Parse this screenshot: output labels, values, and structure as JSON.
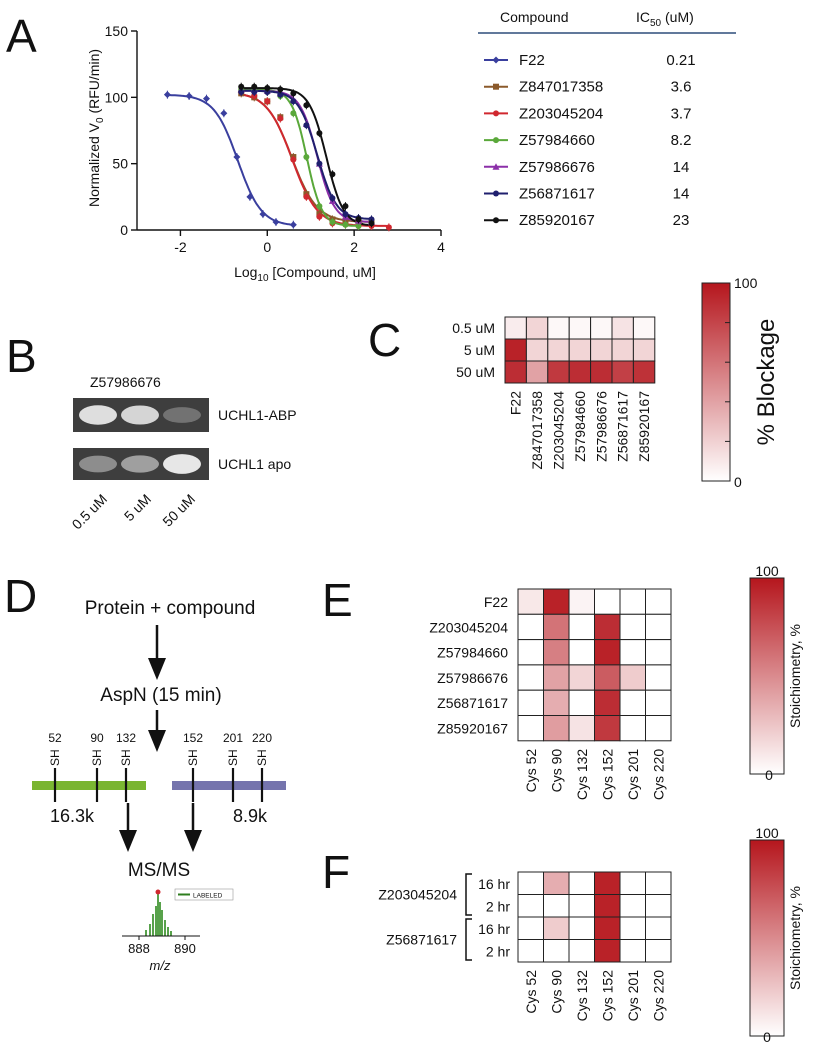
{
  "panels": {
    "A": "A",
    "B": "B",
    "C": "C",
    "D": "D",
    "E": "E",
    "F": "F"
  },
  "chart_data": [
    {
      "panel": "A",
      "type": "line",
      "title": "",
      "xlabel_main": "Log",
      "xlabel_sub": "10",
      "xlabel_rest": " [Compound, uM]",
      "ylabel_main": "Normalized V",
      "ylabel_sub": "0",
      "ylabel_rest": " (RFU/min)",
      "xlim": [
        -3,
        4
      ],
      "ylim": [
        0,
        150
      ],
      "xticks": [
        "-2",
        "0",
        "2",
        "4"
      ],
      "yticks": [
        "0",
        "50",
        "100",
        "150"
      ],
      "legend_header": {
        "compound": "Compound",
        "ic50_main": "IC",
        "ic50_sub": "50",
        "ic50_rest": " (uM)"
      },
      "series": [
        {
          "name": "F22",
          "ic50": "0.21",
          "color": "#3a3f9e",
          "marker": "diamond",
          "top": 102,
          "bottom": 3,
          "logic50": -0.68,
          "hill": 1.6,
          "points": [
            [
              -2.3,
              102
            ],
            [
              -1.8,
              101
            ],
            [
              -1.4,
              99
            ],
            [
              -1.0,
              88
            ],
            [
              -0.7,
              55
            ],
            [
              -0.4,
              25
            ],
            [
              -0.1,
              12
            ],
            [
              0.2,
              6
            ],
            [
              0.6,
              4
            ]
          ]
        },
        {
          "name": "Z847017358",
          "ic50": "3.6",
          "color": "#8b5a2b",
          "marker": "square",
          "top": 104,
          "bottom": 6,
          "logic50": 0.56,
          "hill": 1.5,
          "points": [
            [
              -0.6,
              103
            ],
            [
              -0.3,
              100
            ],
            [
              0.0,
              97
            ],
            [
              0.3,
              85
            ],
            [
              0.6,
              55
            ],
            [
              0.9,
              27
            ],
            [
              1.2,
              12
            ],
            [
              1.5,
              8
            ],
            [
              1.8,
              7
            ],
            [
              2.1,
              7
            ],
            [
              2.4,
              6
            ]
          ]
        },
        {
          "name": "Z203045204",
          "ic50": "3.7",
          "color": "#d0282f",
          "marker": "circle",
          "top": 104,
          "bottom": 3,
          "logic50": 0.57,
          "hill": 1.5,
          "points": [
            [
              -0.6,
              104
            ],
            [
              -0.3,
              101
            ],
            [
              0.0,
              97
            ],
            [
              0.3,
              84
            ],
            [
              0.6,
              53
            ],
            [
              0.9,
              25
            ],
            [
              1.2,
              10
            ],
            [
              1.5,
              5
            ],
            [
              1.8,
              4
            ],
            [
              2.1,
              3
            ],
            [
              2.4,
              3
            ],
            [
              2.8,
              2
            ]
          ]
        },
        {
          "name": "Z57984660",
          "ic50": "8.2",
          "color": "#5aa83a",
          "marker": "circle",
          "top": 106,
          "bottom": 3,
          "logic50": 0.91,
          "hill": 2.5,
          "points": [
            [
              -0.6,
              106
            ],
            [
              -0.3,
              105
            ],
            [
              0.0,
              104
            ],
            [
              0.3,
              101
            ],
            [
              0.6,
              88
            ],
            [
              0.9,
              55
            ],
            [
              1.2,
              18
            ],
            [
              1.5,
              6
            ],
            [
              1.8,
              4
            ],
            [
              2.1,
              3
            ]
          ]
        },
        {
          "name": "Z57986676",
          "ic50": "14",
          "color": "#8b2fa8",
          "marker": "triangle",
          "top": 105,
          "bottom": 6,
          "logic50": 1.15,
          "hill": 2.2,
          "points": [
            [
              -0.6,
              106
            ],
            [
              -0.3,
              106
            ],
            [
              0.0,
              105
            ],
            [
              0.3,
              103
            ],
            [
              0.6,
              98
            ],
            [
              0.9,
              80
            ],
            [
              1.2,
              50
            ],
            [
              1.5,
              22
            ],
            [
              1.8,
              10
            ],
            [
              2.1,
              7
            ],
            [
              2.4,
              6
            ]
          ]
        },
        {
          "name": "Z56871617",
          "ic50": "14",
          "color": "#1f1f6e",
          "marker": "circle",
          "top": 105,
          "bottom": 8,
          "logic50": 1.15,
          "hill": 2.0,
          "points": [
            [
              -0.6,
              104
            ],
            [
              -0.3,
              104
            ],
            [
              0.0,
              104
            ],
            [
              0.3,
              102
            ],
            [
              0.6,
              97
            ],
            [
              0.9,
              79
            ],
            [
              1.2,
              50
            ],
            [
              1.5,
              24
            ],
            [
              1.8,
              12
            ],
            [
              2.1,
              9
            ],
            [
              2.4,
              8
            ]
          ]
        },
        {
          "name": "Z85920167",
          "ic50": "23",
          "color": "#111111",
          "marker": "circle",
          "top": 107,
          "bottom": 3,
          "logic50": 1.36,
          "hill": 2.2,
          "points": [
            [
              -0.6,
              108
            ],
            [
              -0.3,
              108
            ],
            [
              0.0,
              107
            ],
            [
              0.3,
              106
            ],
            [
              0.6,
              103
            ],
            [
              0.9,
              94
            ],
            [
              1.2,
              73
            ],
            [
              1.5,
              42
            ],
            [
              1.8,
              18
            ],
            [
              2.1,
              8
            ],
            [
              2.4,
              5
            ]
          ]
        }
      ]
    },
    {
      "panel": "C",
      "type": "heatmap",
      "rows": [
        "0.5 uM",
        "5 uM",
        "50 uM"
      ],
      "cols": [
        "F22",
        "Z847017358",
        "Z203045204",
        "Z57984660",
        "Z57986676",
        "Z56871617",
        "Z85920167"
      ],
      "values": [
        [
          8,
          18,
          3,
          3,
          3,
          12,
          3
        ],
        [
          95,
          18,
          18,
          18,
          18,
          18,
          18
        ],
        [
          90,
          40,
          85,
          90,
          90,
          82,
          88
        ]
      ],
      "colorbar": {
        "min": 0,
        "max": 100,
        "ticks": [
          "0",
          "100"
        ],
        "label": "% Blockage"
      }
    },
    {
      "panel": "E",
      "type": "heatmap",
      "rows": [
        "F22",
        "Z203045204",
        "Z57984660",
        "Z57986676",
        "Z56871617",
        "Z85920167"
      ],
      "cols": [
        "Cys 52",
        "Cys 90",
        "Cys 132",
        "Cys 152",
        "Cys 201",
        "Cys 220"
      ],
      "values": [
        [
          10,
          95,
          5,
          0,
          0,
          0
        ],
        [
          0,
          60,
          0,
          90,
          0,
          0
        ],
        [
          0,
          55,
          0,
          95,
          0,
          0
        ],
        [
          0,
          40,
          18,
          70,
          22,
          0
        ],
        [
          0,
          35,
          0,
          90,
          0,
          0
        ],
        [
          0,
          42,
          12,
          85,
          0,
          0
        ]
      ],
      "colorbar": {
        "min": 0,
        "max": 100,
        "ticks": [
          "0",
          "100"
        ],
        "label": "Stoichiometry, %"
      }
    },
    {
      "panel": "F",
      "type": "heatmap",
      "groups": [
        "Z203045204",
        "Z56871617"
      ],
      "rows": [
        "16 hr",
        "2 hr",
        "16 hr",
        "2 hr"
      ],
      "cols": [
        "Cys 52",
        "Cys 90",
        "Cys 132",
        "Cys 152",
        "Cys 201",
        "Cys 220"
      ],
      "values": [
        [
          0,
          35,
          0,
          95,
          0,
          0
        ],
        [
          0,
          0,
          0,
          95,
          0,
          0
        ],
        [
          0,
          22,
          0,
          95,
          0,
          0
        ],
        [
          0,
          0,
          0,
          95,
          0,
          0
        ]
      ],
      "colorbar": {
        "min": 0,
        "max": 100,
        "ticks": [
          "0",
          "100"
        ],
        "label": "Stoichiometry, %"
      }
    }
  ],
  "gel": {
    "compound": "Z57986676",
    "bands": [
      {
        "label": "UCHL1-ABP",
        "intensities": [
          0.9,
          0.85,
          0.3
        ]
      },
      {
        "label": "UCHL1 apo",
        "intensities": [
          0.45,
          0.55,
          0.95
        ]
      }
    ],
    "lanes": [
      "0.5 uM",
      "5 uM",
      "50 uM"
    ]
  },
  "workflow": {
    "step1": "Protein + compound",
    "step2": "AspN (15 min)",
    "site_numbers_left": [
      "52",
      "90",
      "132"
    ],
    "site_numbers_right": [
      "152",
      "201",
      "220"
    ],
    "sh": "SH",
    "frag_left": "16.3k",
    "frag_right": "8.9k",
    "step3": "MS/MS",
    "ms_legend": "LABELED",
    "ms_ticks": [
      "888",
      "890"
    ],
    "ms_xlabel": "m/z",
    "color_left": "#7ab531",
    "color_right": "#7574ad"
  }
}
